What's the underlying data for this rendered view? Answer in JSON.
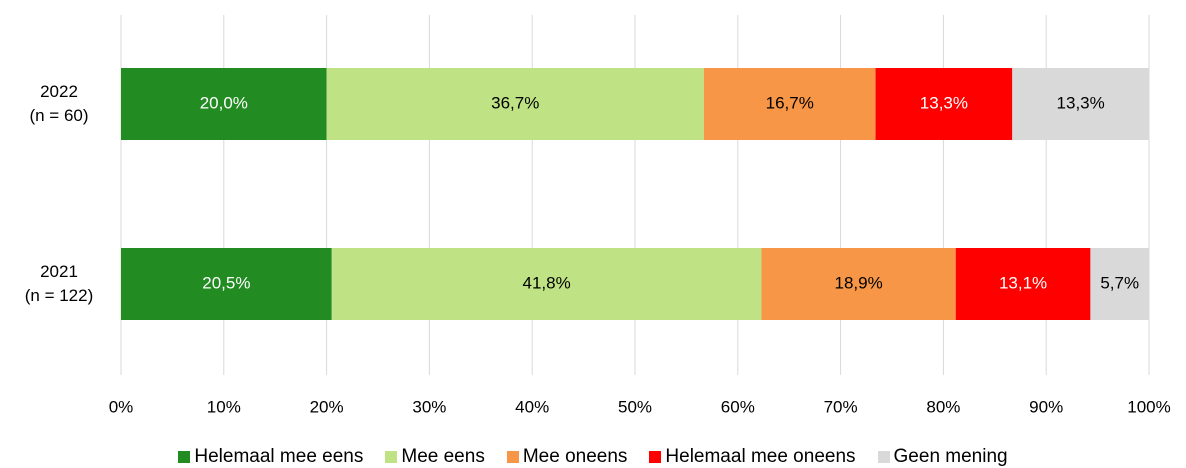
{
  "chart_data": {
    "type": "stacked_barh",
    "categories": [
      "2022\n(n = 60)",
      "2021\n(n = 122)"
    ],
    "series": [
      {
        "name": "Helemaal mee eens",
        "color": "#228b22",
        "label_color": "#ffffff",
        "values": [
          20.0,
          20.5
        ],
        "value_labels": [
          "20,0%",
          "20,5%"
        ]
      },
      {
        "name": "Mee eens",
        "color": "#bfe384",
        "label_color": "#000000",
        "values": [
          36.7,
          41.8
        ],
        "value_labels": [
          "36,7%",
          "41,8%"
        ]
      },
      {
        "name": "Mee oneens",
        "color": "#f79646",
        "label_color": "#000000",
        "values": [
          16.7,
          18.9
        ],
        "value_labels": [
          "16,7%",
          "18,9%"
        ]
      },
      {
        "name": "Helemaal mee oneens",
        "color": "#ff0000",
        "label_color": "#ffffff",
        "values": [
          13.3,
          13.1
        ],
        "value_labels": [
          "13,3%",
          "13,1%"
        ]
      },
      {
        "name": "Geen mening",
        "color": "#d9d9d9",
        "label_color": "#000000",
        "values": [
          13.3,
          5.7
        ],
        "value_labels": [
          "13,3%",
          "5,7%"
        ]
      }
    ],
    "xlim": [
      0,
      100
    ],
    "xticks": [
      {
        "value": 0,
        "label": "0%"
      },
      {
        "value": 10,
        "label": "10%"
      },
      {
        "value": 20,
        "label": "20%"
      },
      {
        "value": 30,
        "label": "30%"
      },
      {
        "value": 40,
        "label": "40%"
      },
      {
        "value": 50,
        "label": "50%"
      },
      {
        "value": 60,
        "label": "60%"
      },
      {
        "value": 70,
        "label": "70%"
      },
      {
        "value": 80,
        "label": "80%"
      },
      {
        "value": 90,
        "label": "90%"
      },
      {
        "value": 100,
        "label": "100%"
      }
    ],
    "grid": true,
    "legend": "bottom"
  }
}
